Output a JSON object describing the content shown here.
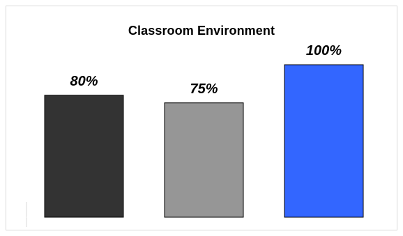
{
  "chart_data": {
    "type": "bar",
    "title": "Classroom Environment",
    "categories": [
      "",
      "",
      ""
    ],
    "values": [
      80,
      75,
      100
    ],
    "labels": [
      "80%",
      "75%",
      "100%"
    ],
    "colors": [
      "#333333",
      "#969696",
      "#3366ff"
    ],
    "xlabel": "",
    "ylabel": "",
    "ylim": [
      0,
      100
    ],
    "grid": false,
    "legend": "none"
  }
}
